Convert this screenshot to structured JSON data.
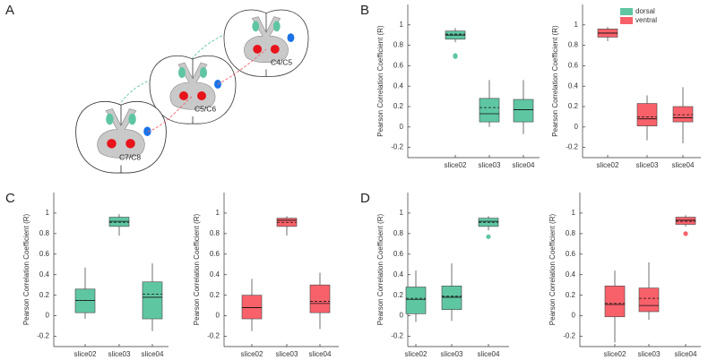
{
  "figure": {
    "panel_labels": [
      "A",
      "B",
      "C",
      "D"
    ],
    "diagram_labels": [
      "C4/C5",
      "C5/C6",
      "C7/C8"
    ],
    "legend": [
      {
        "name": "dorsal",
        "color": "#5fc6a2"
      },
      {
        "name": "ventral",
        "color": "#f8616a"
      }
    ]
  },
  "chart_data": [
    {
      "type": "box",
      "y_label": "Pearson Correlation Coefficient (R)",
      "color": "#5fc6a2",
      "categories": [
        "slice02",
        "slice03",
        "slice04"
      ],
      "ylim": [
        -0.3,
        1.2
      ],
      "yticks": [
        -0.2,
        0,
        0.2,
        0.4,
        0.6,
        0.8,
        1
      ],
      "boxes": [
        {
          "min": 0.83,
          "q1": 0.86,
          "median": 0.9,
          "q3": 0.94,
          "max": 0.97,
          "mean": 0.91,
          "outliers": [
            0.69,
            0.7
          ]
        },
        {
          "min": 0.0,
          "q1": 0.05,
          "median": 0.13,
          "q3": 0.28,
          "max": 0.46,
          "mean": 0.19
        },
        {
          "min": -0.07,
          "q1": 0.05,
          "median": 0.17,
          "q3": 0.27,
          "max": 0.46,
          "mean": 0.17
        }
      ]
    },
    {
      "type": "box",
      "y_label": "Pearson Correlation Coefficient (R)",
      "color": "#f8616a",
      "categories": [
        "slice02",
        "slice03",
        "slice04"
      ],
      "ylim": [
        -0.3,
        1.2
      ],
      "yticks": [
        -0.2,
        0,
        0.2,
        0.4,
        0.6,
        0.8,
        1
      ],
      "boxes": [
        {
          "min": 0.84,
          "q1": 0.88,
          "median": 0.92,
          "q3": 0.96,
          "max": 0.98,
          "mean": 0.92
        },
        {
          "min": -0.13,
          "q1": 0.01,
          "median": 0.08,
          "q3": 0.23,
          "max": 0.31,
          "mean": 0.1
        },
        {
          "min": -0.16,
          "q1": 0.05,
          "median": 0.09,
          "q3": 0.2,
          "max": 0.39,
          "mean": 0.12
        }
      ]
    },
    {
      "type": "box",
      "y_label": "Pearson Correlation Coefficient (R)",
      "color": "#5fc6a2",
      "categories": [
        "slice02",
        "slice03",
        "slice04"
      ],
      "ylim": [
        -0.3,
        1.2
      ],
      "yticks": [
        -0.2,
        0,
        0.2,
        0.4,
        0.6,
        0.8,
        1
      ],
      "boxes": [
        {
          "min": -0.03,
          "q1": 0.03,
          "median": 0.15,
          "q3": 0.26,
          "max": 0.47,
          "mean": 0.15
        },
        {
          "min": 0.78,
          "q1": 0.87,
          "median": 0.92,
          "q3": 0.96,
          "max": 0.99,
          "mean": 0.91
        },
        {
          "min": -0.15,
          "q1": -0.03,
          "median": 0.18,
          "q3": 0.33,
          "max": 0.51,
          "mean": 0.21
        }
      ]
    },
    {
      "type": "box",
      "y_label": "Pearson Correlation Coefficient (R)",
      "color": "#f8616a",
      "categories": [
        "slice02",
        "slice03",
        "slice04"
      ],
      "ylim": [
        -0.3,
        1.2
      ],
      "yticks": [
        -0.2,
        0,
        0.2,
        0.4,
        0.6,
        0.8,
        1
      ],
      "boxes": [
        {
          "min": -0.15,
          "q1": -0.03,
          "median": 0.08,
          "q3": 0.2,
          "max": 0.36,
          "mean": 0.08
        },
        {
          "min": 0.78,
          "q1": 0.87,
          "median": 0.93,
          "q3": 0.95,
          "max": 0.97,
          "mean": 0.91
        },
        {
          "min": -0.13,
          "q1": 0.03,
          "median": 0.12,
          "q3": 0.3,
          "max": 0.42,
          "mean": 0.14
        }
      ]
    },
    {
      "type": "box",
      "y_label": "Pearson Correlation Coefficient (R)",
      "color": "#5fc6a2",
      "categories": [
        "slice02",
        "slice03",
        "slice04"
      ],
      "ylim": [
        -0.3,
        1.2
      ],
      "yticks": [
        -0.2,
        0,
        0.2,
        0.4,
        0.6,
        0.8,
        1
      ],
      "boxes": [
        {
          "min": -0.06,
          "q1": 0.02,
          "median": 0.16,
          "q3": 0.28,
          "max": 0.44,
          "mean": 0.17
        },
        {
          "min": -0.05,
          "q1": 0.06,
          "median": 0.18,
          "q3": 0.29,
          "max": 0.51,
          "mean": 0.19
        },
        {
          "min": 0.83,
          "q1": 0.87,
          "median": 0.92,
          "q3": 0.95,
          "max": 0.97,
          "mean": 0.91,
          "outliers": [
            0.77
          ]
        }
      ]
    },
    {
      "type": "box",
      "y_label": "Pearson Correlation Coefficient (R)",
      "color": "#f8616a",
      "categories": [
        "slice02",
        "slice03",
        "slice04"
      ],
      "ylim": [
        -0.3,
        1.2
      ],
      "yticks": [
        -0.2,
        0,
        0.2,
        0.4,
        0.6,
        0.8,
        1
      ],
      "boxes": [
        {
          "min": -0.26,
          "q1": -0.01,
          "median": 0.11,
          "q3": 0.29,
          "max": 0.44,
          "mean": 0.12
        },
        {
          "min": -0.04,
          "q1": 0.04,
          "median": 0.1,
          "q3": 0.27,
          "max": 0.52,
          "mean": 0.17
        },
        {
          "min": 0.87,
          "q1": 0.89,
          "median": 0.93,
          "q3": 0.96,
          "max": 0.98,
          "mean": 0.92,
          "outliers": [
            0.8
          ]
        }
      ]
    }
  ]
}
